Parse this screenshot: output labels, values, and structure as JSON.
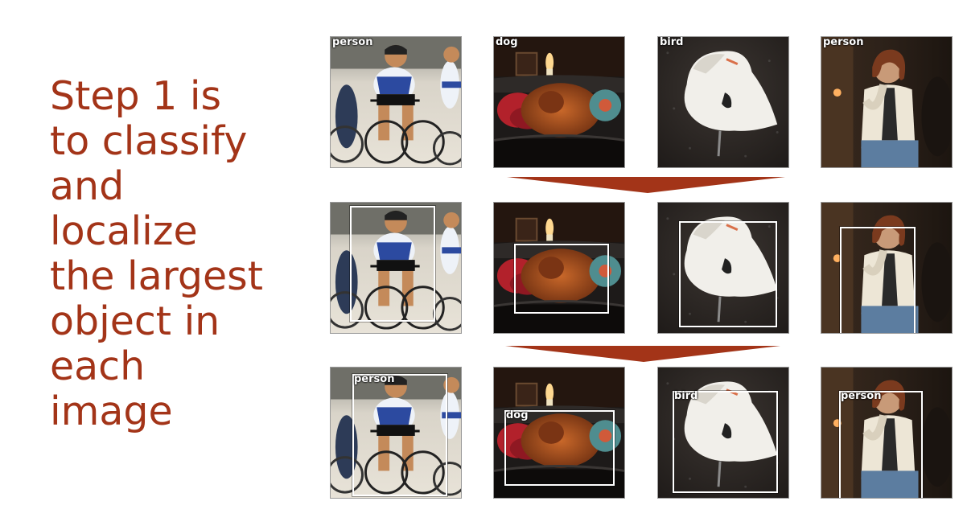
{
  "caption_lines": [
    "Step 1 is",
    "to classify",
    "and",
    "localize",
    "the largest",
    "object in",
    "each",
    "image"
  ],
  "top_labels": [
    "person",
    "dog",
    "bird",
    "person"
  ],
  "bottom_labels": [
    "person",
    "dog",
    "bird",
    "person"
  ],
  "colors": {
    "caption": "#a33418",
    "arrow": "#a33418",
    "box": "#ffffff"
  },
  "image_subjects": [
    "cyclists-racing",
    "dog-on-sofa",
    "white-swan",
    "woman-seated"
  ]
}
